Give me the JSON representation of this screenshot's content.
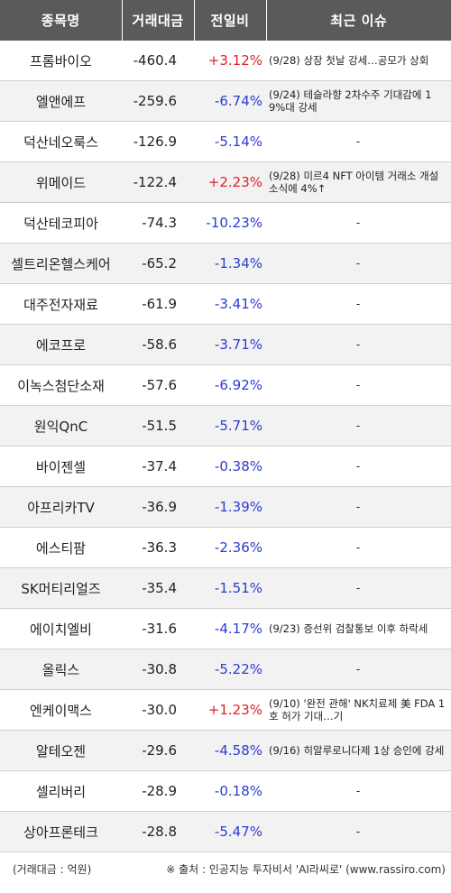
{
  "table": {
    "headers": [
      "종목명",
      "거래대금",
      "전일비",
      "최근 이슈"
    ],
    "rows": [
      {
        "name": "프롬바이오",
        "volume": "-460.4",
        "change": "+3.12%",
        "dir": "up",
        "issue": "(9/28) 상장 첫날 강세…공모가 상회"
      },
      {
        "name": "엘앤에프",
        "volume": "-259.6",
        "change": "-6.74%",
        "dir": "down",
        "issue": "(9/24) 테슬라향 2차수주 기대감에 19%대 강세"
      },
      {
        "name": "덕산네오룩스",
        "volume": "-126.9",
        "change": "-5.14%",
        "dir": "down",
        "issue": "-"
      },
      {
        "name": "위메이드",
        "volume": "-122.4",
        "change": "+2.23%",
        "dir": "up",
        "issue": "(9/28) 미르4 NFT 아이템 거래소 개설 소식에 4%↑"
      },
      {
        "name": "덕산테코피아",
        "volume": "-74.3",
        "change": "-10.23%",
        "dir": "down",
        "issue": "-"
      },
      {
        "name": "셀트리온헬스케어",
        "volume": "-65.2",
        "change": "-1.34%",
        "dir": "down",
        "issue": "-"
      },
      {
        "name": "대주전자재료",
        "volume": "-61.9",
        "change": "-3.41%",
        "dir": "down",
        "issue": "-"
      },
      {
        "name": "에코프로",
        "volume": "-58.6",
        "change": "-3.71%",
        "dir": "down",
        "issue": "-"
      },
      {
        "name": "이녹스첨단소재",
        "volume": "-57.6",
        "change": "-6.92%",
        "dir": "down",
        "issue": "-"
      },
      {
        "name": "원익QnC",
        "volume": "-51.5",
        "change": "-5.71%",
        "dir": "down",
        "issue": "-"
      },
      {
        "name": "바이젠셀",
        "volume": "-37.4",
        "change": "-0.38%",
        "dir": "down",
        "issue": "-"
      },
      {
        "name": "아프리카TV",
        "volume": "-36.9",
        "change": "-1.39%",
        "dir": "down",
        "issue": "-"
      },
      {
        "name": "에스티팜",
        "volume": "-36.3",
        "change": "-2.36%",
        "dir": "down",
        "issue": "-"
      },
      {
        "name": "SK머티리얼즈",
        "volume": "-35.4",
        "change": "-1.51%",
        "dir": "down",
        "issue": "-"
      },
      {
        "name": "에이치엘비",
        "volume": "-31.6",
        "change": "-4.17%",
        "dir": "down",
        "issue": "(9/23) 증선위 검찰통보 이후 하락세"
      },
      {
        "name": "올릭스",
        "volume": "-30.8",
        "change": "-5.22%",
        "dir": "down",
        "issue": "-"
      },
      {
        "name": "엔케이맥스",
        "volume": "-30.0",
        "change": "+1.23%",
        "dir": "up",
        "issue": "(9/10) '완전 관해' NK치료제 美 FDA 1호 허가 기대…기"
      },
      {
        "name": "알테오젠",
        "volume": "-29.6",
        "change": "-4.58%",
        "dir": "down",
        "issue": "(9/16) 히알루로니다제 1상 승인에 강세"
      },
      {
        "name": "셀리버리",
        "volume": "-28.9",
        "change": "-0.18%",
        "dir": "down",
        "issue": "-"
      },
      {
        "name": "상아프론테크",
        "volume": "-28.8",
        "change": "-5.47%",
        "dir": "down",
        "issue": "-"
      }
    ]
  },
  "footer": {
    "unit_note": "(거래대금 : 억원)",
    "source_note": "※ 출처 : 인공지능 투자비서 'AI라씨로' (www.rassiro.com)"
  },
  "colors": {
    "header_bg": "#5a5a5a",
    "up": "#e0202a",
    "down": "#2c3ccf",
    "stripe": "#f2f2f2"
  }
}
